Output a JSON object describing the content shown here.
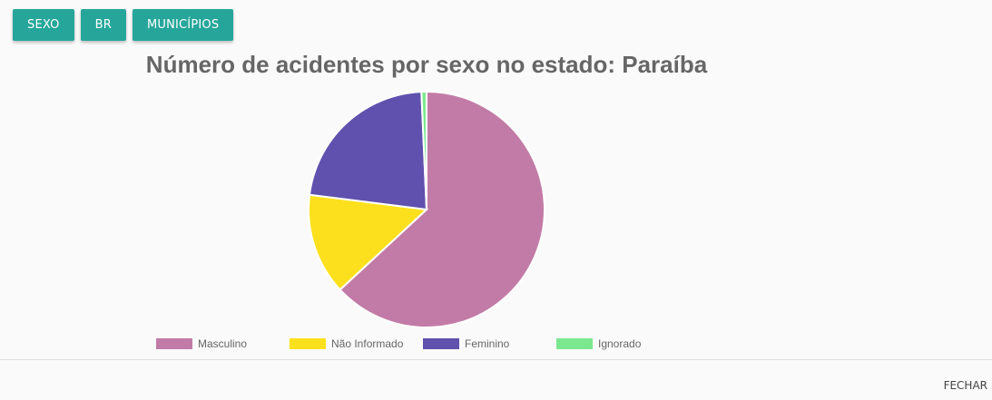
{
  "buttons": {
    "sexo": "SEXO",
    "br": "BR",
    "municipios": "MUNICÍPIOS"
  },
  "footer": {
    "close_label": "FECHAR"
  },
  "colors": {
    "button": "#26a69a",
    "masculino": "#c27ba6",
    "nao_informado": "#fde01d",
    "feminino": "#5f51ad",
    "ignorado": "#7be88f"
  },
  "chart_data": {
    "type": "pie",
    "title": "Número de acidentes por sexo no estado: Paraíba",
    "legend_position": "bottom",
    "slices": [
      {
        "label": "Masculino",
        "value": 63.1,
        "color": "#c27ba6"
      },
      {
        "label": "Não Informado",
        "value": 13.9,
        "color": "#fde01d"
      },
      {
        "label": "Feminino",
        "value": 22.3,
        "color": "#5f51ad"
      },
      {
        "label": "Ignorado",
        "value": 0.7,
        "color": "#7be88f"
      }
    ]
  }
}
